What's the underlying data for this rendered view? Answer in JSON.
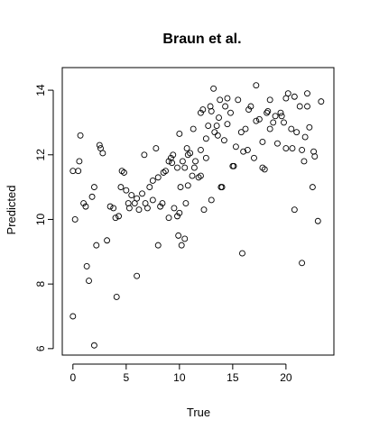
{
  "chart_data": {
    "type": "scatter",
    "title": "Braun et al.",
    "xlabel": "True",
    "ylabel": "Predicted",
    "xlim": [
      -1,
      24.5
    ],
    "ylim": [
      5.8,
      14.7
    ],
    "xticks": [
      0,
      5,
      10,
      15,
      20
    ],
    "yticks": [
      6,
      8,
      10,
      12,
      14
    ],
    "grid": false,
    "legend": "none",
    "points": [
      {
        "x": 0.0,
        "y": 7.0
      },
      {
        "x": 0.0,
        "y": 11.5
      },
      {
        "x": 0.2,
        "y": 10.0
      },
      {
        "x": 0.5,
        "y": 11.5
      },
      {
        "x": 0.6,
        "y": 11.8
      },
      {
        "x": 0.7,
        "y": 12.6
      },
      {
        "x": 1.0,
        "y": 10.5
      },
      {
        "x": 1.2,
        "y": 10.4
      },
      {
        "x": 1.3,
        "y": 8.55
      },
      {
        "x": 1.5,
        "y": 8.1
      },
      {
        "x": 1.8,
        "y": 10.7
      },
      {
        "x": 2.0,
        "y": 11.0
      },
      {
        "x": 2.0,
        "y": 6.1
      },
      {
        "x": 2.2,
        "y": 9.2
      },
      {
        "x": 2.5,
        "y": 12.3
      },
      {
        "x": 2.6,
        "y": 12.2
      },
      {
        "x": 2.8,
        "y": 12.05
      },
      {
        "x": 3.2,
        "y": 9.35
      },
      {
        "x": 3.5,
        "y": 10.4
      },
      {
        "x": 3.8,
        "y": 10.35
      },
      {
        "x": 4.0,
        "y": 10.05
      },
      {
        "x": 4.1,
        "y": 7.6
      },
      {
        "x": 4.3,
        "y": 10.1
      },
      {
        "x": 4.5,
        "y": 11.0
      },
      {
        "x": 4.6,
        "y": 11.5
      },
      {
        "x": 4.8,
        "y": 11.45
      },
      {
        "x": 5.0,
        "y": 10.9
      },
      {
        "x": 5.2,
        "y": 10.5
      },
      {
        "x": 5.3,
        "y": 10.35
      },
      {
        "x": 5.5,
        "y": 10.75
      },
      {
        "x": 5.8,
        "y": 10.5
      },
      {
        "x": 6.0,
        "y": 10.65
      },
      {
        "x": 6.0,
        "y": 8.25
      },
      {
        "x": 6.2,
        "y": 10.3
      },
      {
        "x": 6.5,
        "y": 10.8
      },
      {
        "x": 6.7,
        "y": 12.0
      },
      {
        "x": 6.8,
        "y": 10.5
      },
      {
        "x": 7.0,
        "y": 10.35
      },
      {
        "x": 7.2,
        "y": 11.0
      },
      {
        "x": 7.5,
        "y": 10.6
      },
      {
        "x": 7.5,
        "y": 11.2
      },
      {
        "x": 7.8,
        "y": 12.2
      },
      {
        "x": 8.0,
        "y": 11.3
      },
      {
        "x": 8.0,
        "y": 9.2
      },
      {
        "x": 8.2,
        "y": 10.4
      },
      {
        "x": 8.4,
        "y": 10.5
      },
      {
        "x": 8.5,
        "y": 11.45
      },
      {
        "x": 8.7,
        "y": 11.5
      },
      {
        "x": 9.0,
        "y": 11.8
      },
      {
        "x": 9.0,
        "y": 10.05
      },
      {
        "x": 9.2,
        "y": 11.9
      },
      {
        "x": 9.3,
        "y": 11.75
      },
      {
        "x": 9.4,
        "y": 12.0
      },
      {
        "x": 9.5,
        "y": 10.35
      },
      {
        "x": 9.8,
        "y": 11.6
      },
      {
        "x": 9.8,
        "y": 10.1
      },
      {
        "x": 9.9,
        "y": 9.5
      },
      {
        "x": 10.0,
        "y": 12.65
      },
      {
        "x": 10.0,
        "y": 10.2
      },
      {
        "x": 10.1,
        "y": 11.0
      },
      {
        "x": 10.2,
        "y": 9.2
      },
      {
        "x": 10.3,
        "y": 11.8
      },
      {
        "x": 10.5,
        "y": 11.6
      },
      {
        "x": 10.5,
        "y": 9.4
      },
      {
        "x": 10.6,
        "y": 10.5
      },
      {
        "x": 10.7,
        "y": 12.2
      },
      {
        "x": 10.8,
        "y": 11.05
      },
      {
        "x": 10.8,
        "y": 12.0
      },
      {
        "x": 11.0,
        "y": 12.05
      },
      {
        "x": 11.2,
        "y": 11.35
      },
      {
        "x": 11.3,
        "y": 12.8
      },
      {
        "x": 11.4,
        "y": 11.6
      },
      {
        "x": 11.5,
        "y": 11.8
      },
      {
        "x": 11.8,
        "y": 11.3
      },
      {
        "x": 12.0,
        "y": 11.35
      },
      {
        "x": 12.0,
        "y": 13.3
      },
      {
        "x": 12.0,
        "y": 12.15
      },
      {
        "x": 12.2,
        "y": 13.4
      },
      {
        "x": 12.3,
        "y": 10.3
      },
      {
        "x": 12.5,
        "y": 12.5
      },
      {
        "x": 12.5,
        "y": 11.9
      },
      {
        "x": 12.7,
        "y": 12.9
      },
      {
        "x": 12.9,
        "y": 13.5
      },
      {
        "x": 13.0,
        "y": 13.35
      },
      {
        "x": 13.0,
        "y": 10.6
      },
      {
        "x": 13.2,
        "y": 14.05
      },
      {
        "x": 13.3,
        "y": 12.7
      },
      {
        "x": 13.5,
        "y": 12.9
      },
      {
        "x": 13.6,
        "y": 12.6
      },
      {
        "x": 13.7,
        "y": 13.15
      },
      {
        "x": 13.8,
        "y": 13.7
      },
      {
        "x": 13.9,
        "y": 11.0
      },
      {
        "x": 14.0,
        "y": 11.0
      },
      {
        "x": 14.2,
        "y": 12.45
      },
      {
        "x": 14.3,
        "y": 13.5
      },
      {
        "x": 14.5,
        "y": 13.75
      },
      {
        "x": 14.5,
        "y": 12.95
      },
      {
        "x": 14.8,
        "y": 13.3
      },
      {
        "x": 15.0,
        "y": 11.65
      },
      {
        "x": 15.1,
        "y": 11.65
      },
      {
        "x": 15.3,
        "y": 12.25
      },
      {
        "x": 15.5,
        "y": 13.7
      },
      {
        "x": 15.8,
        "y": 12.7
      },
      {
        "x": 15.9,
        "y": 8.95
      },
      {
        "x": 16.0,
        "y": 12.1
      },
      {
        "x": 16.2,
        "y": 12.8
      },
      {
        "x": 16.4,
        "y": 12.15
      },
      {
        "x": 16.5,
        "y": 13.4
      },
      {
        "x": 16.7,
        "y": 13.5
      },
      {
        "x": 17.0,
        "y": 11.9
      },
      {
        "x": 17.2,
        "y": 13.05
      },
      {
        "x": 17.2,
        "y": 14.15
      },
      {
        "x": 17.5,
        "y": 13.1
      },
      {
        "x": 17.8,
        "y": 11.6
      },
      {
        "x": 17.8,
        "y": 12.4
      },
      {
        "x": 18.0,
        "y": 11.55
      },
      {
        "x": 18.2,
        "y": 13.3
      },
      {
        "x": 18.3,
        "y": 13.35
      },
      {
        "x": 18.5,
        "y": 13.7
      },
      {
        "x": 18.5,
        "y": 12.8
      },
      {
        "x": 18.8,
        "y": 13.0
      },
      {
        "x": 19.0,
        "y": 13.2
      },
      {
        "x": 19.2,
        "y": 12.35
      },
      {
        "x": 19.5,
        "y": 13.3
      },
      {
        "x": 19.6,
        "y": 13.2
      },
      {
        "x": 19.8,
        "y": 13.0
      },
      {
        "x": 20.0,
        "y": 12.2
      },
      {
        "x": 20.0,
        "y": 13.75
      },
      {
        "x": 20.2,
        "y": 13.9
      },
      {
        "x": 20.5,
        "y": 12.8
      },
      {
        "x": 20.6,
        "y": 12.2
      },
      {
        "x": 20.8,
        "y": 13.8
      },
      {
        "x": 20.8,
        "y": 10.3
      },
      {
        "x": 21.0,
        "y": 12.7
      },
      {
        "x": 21.3,
        "y": 13.5
      },
      {
        "x": 21.5,
        "y": 12.15
      },
      {
        "x": 21.5,
        "y": 8.65
      },
      {
        "x": 21.7,
        "y": 11.8
      },
      {
        "x": 21.8,
        "y": 12.55
      },
      {
        "x": 22.0,
        "y": 13.5
      },
      {
        "x": 22.0,
        "y": 13.9
      },
      {
        "x": 22.2,
        "y": 12.85
      },
      {
        "x": 22.5,
        "y": 11.0
      },
      {
        "x": 22.6,
        "y": 12.1
      },
      {
        "x": 22.7,
        "y": 11.95
      },
      {
        "x": 23.0,
        "y": 9.95
      },
      {
        "x": 23.3,
        "y": 13.65
      }
    ]
  }
}
